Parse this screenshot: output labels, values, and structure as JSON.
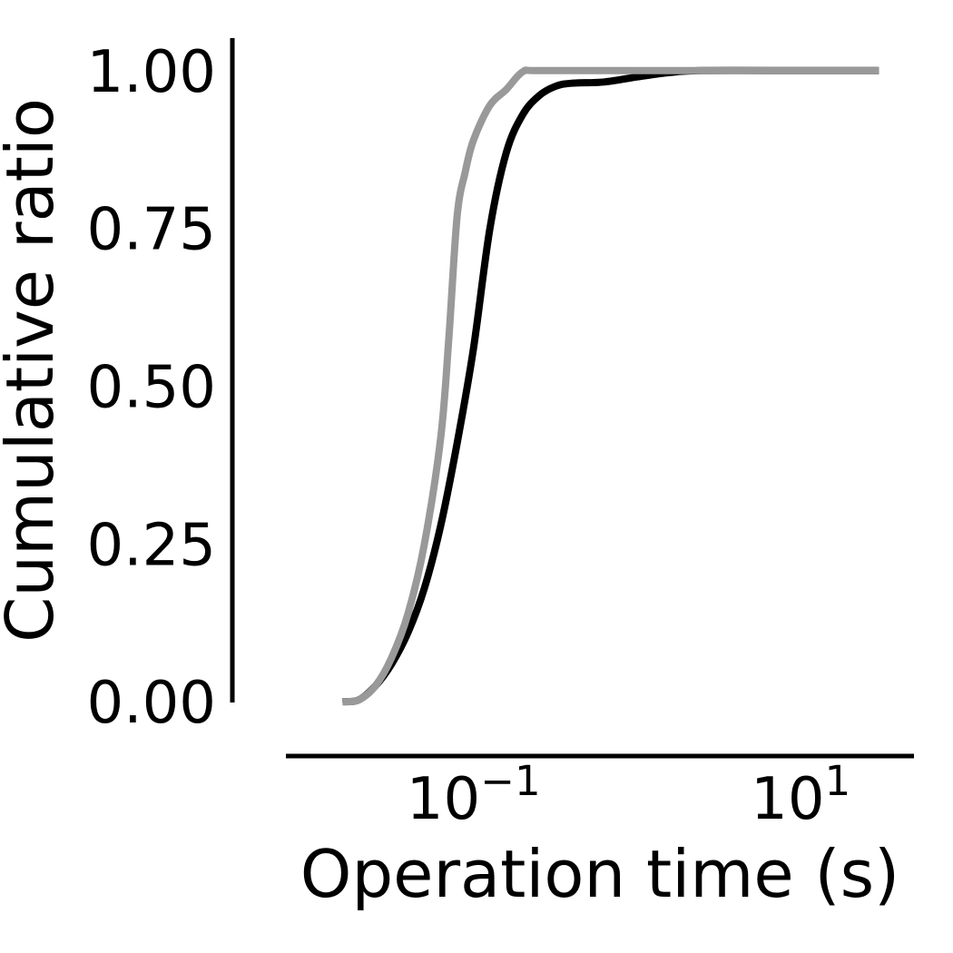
{
  "chart_data": {
    "type": "line",
    "xlabel": "Operation time (s)",
    "ylabel": "Cumulative ratio",
    "x_scale": "log",
    "xlim": [
      0.0079,
      45
    ],
    "ylim": [
      -0.05,
      1.05
    ],
    "x_ticks": [
      {
        "value": 0.1,
        "base": "10",
        "exponent": "−1"
      },
      {
        "value": 10,
        "base": "10",
        "exponent": "1"
      }
    ],
    "y_ticks": [
      {
        "value": 0,
        "label": "0.00"
      },
      {
        "value": 0.25,
        "label": "0.25"
      },
      {
        "value": 0.5,
        "label": "0.50"
      },
      {
        "value": 0.75,
        "label": "0.75"
      },
      {
        "value": 1.0,
        "label": "1.00"
      }
    ],
    "grid": false,
    "legend": "none",
    "series": [
      {
        "color": "#000000",
        "points": [
          [
            0.0158,
            0.0
          ],
          [
            0.0199,
            0.003
          ],
          [
            0.0251,
            0.025
          ],
          [
            0.0316,
            0.06
          ],
          [
            0.0398,
            0.11
          ],
          [
            0.0501,
            0.18
          ],
          [
            0.0631,
            0.28
          ],
          [
            0.0794,
            0.41
          ],
          [
            0.1,
            0.56
          ],
          [
            0.1259,
            0.75
          ],
          [
            0.1585,
            0.87
          ],
          [
            0.1995,
            0.93
          ],
          [
            0.2512,
            0.96
          ],
          [
            0.3162,
            0.975
          ],
          [
            0.3981,
            0.98
          ],
          [
            0.631,
            0.982
          ],
          [
            1.0,
            0.99
          ],
          [
            1.585,
            0.997
          ],
          [
            2.512,
            1.0
          ],
          [
            10.0,
            1.0
          ],
          [
            30.0,
            1.0
          ]
        ]
      },
      {
        "color": "#999999",
        "points": [
          [
            0.0158,
            0.0
          ],
          [
            0.0199,
            0.003
          ],
          [
            0.0251,
            0.025
          ],
          [
            0.0316,
            0.07
          ],
          [
            0.0398,
            0.14
          ],
          [
            0.0501,
            0.25
          ],
          [
            0.0631,
            0.42
          ],
          [
            0.0708,
            0.58
          ],
          [
            0.0794,
            0.77
          ],
          [
            0.0891,
            0.84
          ],
          [
            0.1,
            0.89
          ],
          [
            0.1259,
            0.945
          ],
          [
            0.1585,
            0.97
          ],
          [
            0.1995,
            0.998
          ],
          [
            0.2512,
            1.0
          ],
          [
            1.0,
            1.0
          ],
          [
            10.0,
            1.0
          ],
          [
            30.0,
            1.0
          ]
        ]
      }
    ]
  }
}
